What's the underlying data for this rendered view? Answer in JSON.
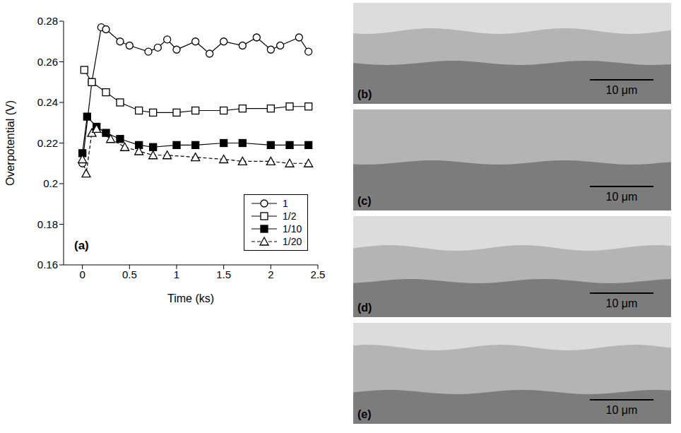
{
  "chart_data": {
    "type": "line",
    "panel_label": "(a)",
    "x_label": "Time (ks)",
    "y_label": "Overpotential (V)",
    "xlim": [
      -0.2,
      2.5
    ],
    "xticks": [
      0,
      0.5,
      1,
      1.5,
      2,
      2.5
    ],
    "ylim": [
      0.16,
      0.28
    ],
    "yticks": [
      0.16,
      0.18,
      0.2,
      0.22,
      0.24,
      0.26,
      0.28
    ],
    "legend": "lower right",
    "series": [
      {
        "name": "1",
        "color": "#000000",
        "marker": "circle",
        "line_style": "solid",
        "x": [
          0,
          0.1,
          0.2,
          0.25,
          0.4,
          0.5,
          0.7,
          0.8,
          0.9,
          1.0,
          1.2,
          1.35,
          1.5,
          1.7,
          1.85,
          2.0,
          2.1,
          2.3,
          2.4
        ],
        "values": [
          0.21,
          0.25,
          0.277,
          0.276,
          0.27,
          0.268,
          0.265,
          0.267,
          0.271,
          0.266,
          0.27,
          0.264,
          0.27,
          0.268,
          0.272,
          0.266,
          0.268,
          0.272,
          0.265
        ]
      },
      {
        "name": "1/2",
        "color": "#000000",
        "marker": "square",
        "line_style": "solid",
        "x": [
          0.02,
          0.1,
          0.25,
          0.4,
          0.6,
          0.75,
          1.0,
          1.2,
          1.5,
          1.7,
          2.0,
          2.2,
          2.4
        ],
        "values": [
          0.256,
          0.25,
          0.245,
          0.24,
          0.236,
          0.235,
          0.235,
          0.236,
          0.236,
          0.237,
          0.237,
          0.238,
          0.238
        ]
      },
      {
        "name": "1/10",
        "color": "#000000",
        "marker": "filled_square",
        "line_style": "solid",
        "x": [
          0,
          0.05,
          0.15,
          0.25,
          0.4,
          0.6,
          0.75,
          1.0,
          1.2,
          1.5,
          1.7,
          2.0,
          2.2,
          2.4
        ],
        "values": [
          0.215,
          0.233,
          0.228,
          0.225,
          0.222,
          0.219,
          0.218,
          0.219,
          0.219,
          0.22,
          0.22,
          0.219,
          0.219,
          0.219
        ]
      },
      {
        "name": "1/20",
        "color": "#000000",
        "marker": "triangle",
        "line_style": "dashed",
        "x": [
          0,
          0.04,
          0.1,
          0.15,
          0.3,
          0.45,
          0.6,
          0.75,
          0.9,
          1.2,
          1.5,
          1.7,
          2.0,
          2.2,
          2.4
        ],
        "values": [
          0.212,
          0.205,
          0.225,
          0.227,
          0.222,
          0.218,
          0.216,
          0.214,
          0.214,
          0.213,
          0.212,
          0.211,
          0.211,
          0.21,
          0.21
        ]
      }
    ]
  },
  "micrographs": [
    {
      "label": "(b)",
      "scale_bar": "10 μm"
    },
    {
      "label": "(c)",
      "scale_bar": "10 μm"
    },
    {
      "label": "(d)",
      "scale_bar": "10 μm"
    },
    {
      "label": "(e)",
      "scale_bar": "10 μm"
    }
  ]
}
